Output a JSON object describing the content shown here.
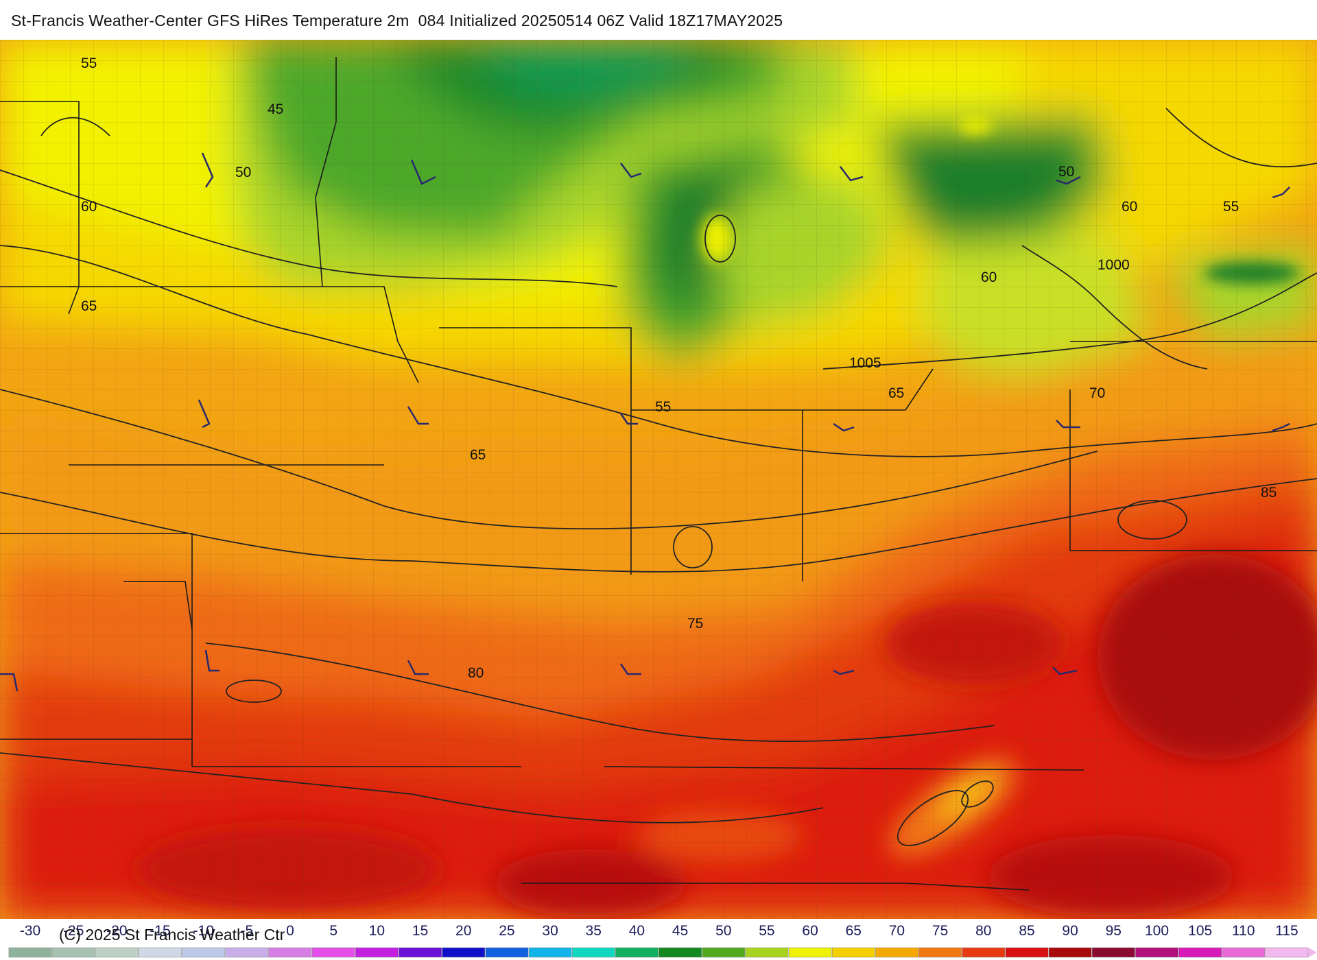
{
  "title": "St-Francis Weather-Center GFS HiRes Temperature 2m  084 Initialized 20250514 06Z Valid 18Z17MAY2025",
  "copyright": "(C) 2025 St Francis Weather Ctr",
  "colors": {
    "cold_green": "#1f7f2a",
    "green": "#4da82a",
    "yellow_green": "#a8d42a",
    "yellow": "#f2f200",
    "gold": "#f5c800",
    "orange": "#f29a12",
    "red_orange": "#ef5a10",
    "red": "#e01a10",
    "dark_red": "#b80f10",
    "maroon": "#8a0a10",
    "lake_green": "#0f9a45",
    "contour_line": "#222222",
    "wind_barb": "#28286e"
  },
  "contour_labels": [
    {
      "text": "55",
      "place": "northwest"
    },
    {
      "text": "45",
      "place": "north-central"
    },
    {
      "text": "50",
      "place": "northwest"
    },
    {
      "text": "60",
      "place": "west"
    },
    {
      "text": "65",
      "place": "west"
    },
    {
      "text": "55",
      "place": "lake-michigan-south"
    },
    {
      "text": "1005",
      "place": "ohio"
    },
    {
      "text": "65",
      "place": "ohio"
    },
    {
      "text": "65",
      "place": "missouri"
    },
    {
      "text": "60",
      "place": "lake-erie"
    },
    {
      "text": "1000",
      "place": "ontario"
    },
    {
      "text": "50",
      "place": "lake-huron-east"
    },
    {
      "text": "60",
      "place": "east"
    },
    {
      "text": "55",
      "place": "northeast"
    },
    {
      "text": "70",
      "place": "pennsylvania"
    },
    {
      "text": "85",
      "place": "virginia"
    },
    {
      "text": "75",
      "place": "tennessee"
    },
    {
      "text": "80",
      "place": "arkansas"
    }
  ],
  "legend": {
    "unit_scale": [
      {
        "label": "-30",
        "color": "#8fb39a"
      },
      {
        "label": "-25",
        "color": "#a7c2b0"
      },
      {
        "label": "-20",
        "color": "#bdd0c5"
      },
      {
        "label": "-15",
        "color": "#cfd9e6"
      },
      {
        "label": "-10",
        "color": "#bcc8e8"
      },
      {
        "label": "-5",
        "color": "#c7aee8"
      },
      {
        "label": "0",
        "color": "#d57ee6"
      },
      {
        "label": "5",
        "color": "#e34fe8"
      },
      {
        "label": "10",
        "color": "#c21fe0"
      },
      {
        "label": "15",
        "color": "#6a10d8"
      },
      {
        "label": "20",
        "color": "#1010c8"
      },
      {
        "label": "25",
        "color": "#1060e0"
      },
      {
        "label": "30",
        "color": "#10b4e8"
      },
      {
        "label": "35",
        "color": "#10d8c0"
      },
      {
        "label": "40",
        "color": "#10b060"
      },
      {
        "label": "45",
        "color": "#108a20"
      },
      {
        "label": "50",
        "color": "#50aa20"
      },
      {
        "label": "55",
        "color": "#a8d420"
      },
      {
        "label": "60",
        "color": "#eef200"
      },
      {
        "label": "65",
        "color": "#f5d000"
      },
      {
        "label": "70",
        "color": "#f5a800"
      },
      {
        "label": "75",
        "color": "#f07810"
      },
      {
        "label": "80",
        "color": "#e83a10"
      },
      {
        "label": "85",
        "color": "#d81010"
      },
      {
        "label": "90",
        "color": "#a80a0a"
      },
      {
        "label": "95",
        "color": "#8a0a30"
      },
      {
        "label": "100",
        "color": "#b0107a"
      },
      {
        "label": "105",
        "color": "#d81ab8"
      },
      {
        "label": "110",
        "color": "#e86ad8"
      },
      {
        "label": "115",
        "color": "#f2b8ee"
      }
    ]
  }
}
